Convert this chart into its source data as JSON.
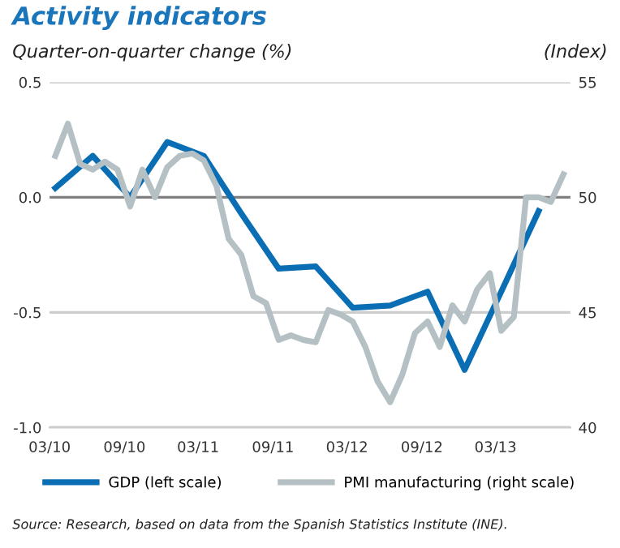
{
  "chart_data": {
    "type": "line",
    "title": "Activity indicators",
    "ylabel": "Quarter-on-quarter change (%)",
    "y2label": "(Index)",
    "xlim": [
      "2010-03-01",
      "2013-09-01"
    ],
    "xticks": [
      {
        "value": "2010-03-01",
        "label": "03/10"
      },
      {
        "value": "2010-09-01",
        "label": "09/10"
      },
      {
        "value": "2011-03-01",
        "label": "03/11"
      },
      {
        "value": "2011-09-01",
        "label": "09/11"
      },
      {
        "value": "2012-03-01",
        "label": "03/12"
      },
      {
        "value": "2012-09-01",
        "label": "09/12"
      },
      {
        "value": "2013-03-01",
        "label": "03/13"
      }
    ],
    "ylim": [
      -1.0,
      0.5
    ],
    "yticks": [
      {
        "value": -1.0,
        "label": "-1.0"
      },
      -0.5,
      {
        "value": 0,
        "label": "0.0"
      },
      0.5
    ],
    "y2lim": [
      40,
      55
    ],
    "y2ticks": [
      40,
      45,
      50,
      55
    ],
    "ref_lines": [
      {
        "axis": "y",
        "value": 0.5,
        "color": "#cccccc"
      },
      {
        "axis": "y",
        "value": 0,
        "color": "#7f7f7f"
      },
      {
        "axis": "y",
        "value": -0.5,
        "color": "#cccccc"
      },
      {
        "axis": "y",
        "value": -1.0,
        "color": "#cccccc"
      }
    ],
    "legend": "bottom",
    "line_style": "solid",
    "series": [
      {
        "name": "GDP (left scale)",
        "color": "#0a6eb4",
        "x": [
          "2010-03-15",
          "2010-06-15",
          "2010-09-15",
          "2010-12-15",
          "2011-03-15",
          "2011-06-15",
          "2011-09-15",
          "2011-12-15",
          "2012-03-15",
          "2012-06-15",
          "2012-09-15",
          "2012-12-15",
          "2013-03-15",
          "2013-06-15"
        ],
        "values": [
          0.04,
          0.18,
          0.0,
          0.24,
          0.18,
          -0.07,
          -0.31,
          -0.3,
          -0.48,
          -0.47,
          -0.41,
          -0.75,
          -0.41,
          -0.06
        ]
      },
      {
        "name": "PMI manufacturing (right scale)",
        "color": "#b4c0c4",
        "axis": "y2",
        "x": [
          "2010-03-15",
          "2010-04-15",
          "2010-05-15",
          "2010-06-15",
          "2010-07-15",
          "2010-08-15",
          "2010-09-15",
          "2010-10-15",
          "2010-11-15",
          "2010-12-15",
          "2011-01-15",
          "2011-02-15",
          "2011-03-15",
          "2011-04-15",
          "2011-05-15",
          "2011-06-15",
          "2011-07-15",
          "2011-08-15",
          "2011-09-15",
          "2011-10-15",
          "2011-11-15",
          "2011-12-15",
          "2012-01-15",
          "2012-02-15",
          "2012-03-15",
          "2012-04-15",
          "2012-05-15",
          "2012-06-15",
          "2012-07-15",
          "2012-08-15",
          "2012-09-15",
          "2012-10-15",
          "2012-11-15",
          "2012-12-15",
          "2013-01-15",
          "2013-02-15",
          "2013-03-15",
          "2013-04-15",
          "2013-05-15",
          "2013-06-15",
          "2013-07-15",
          "2013-08-15"
        ],
        "values": [
          51.8,
          53.2,
          51.45,
          51.2,
          51.55,
          51.2,
          49.6,
          51.2,
          50.0,
          51.3,
          51.8,
          51.9,
          51.6,
          50.5,
          48.2,
          47.5,
          45.7,
          45.4,
          43.8,
          44.0,
          43.8,
          43.7,
          45.1,
          44.9,
          44.6,
          43.5,
          42.0,
          41.1,
          42.3,
          44.1,
          44.6,
          43.5,
          45.3,
          44.6,
          46.0,
          46.7,
          44.2,
          44.8,
          50.0,
          50.0,
          49.8,
          51.0
        ]
      }
    ],
    "annotations": [
      "Source: Research, based on data from the Spanish Statistics Institute (INE)."
    ]
  }
}
